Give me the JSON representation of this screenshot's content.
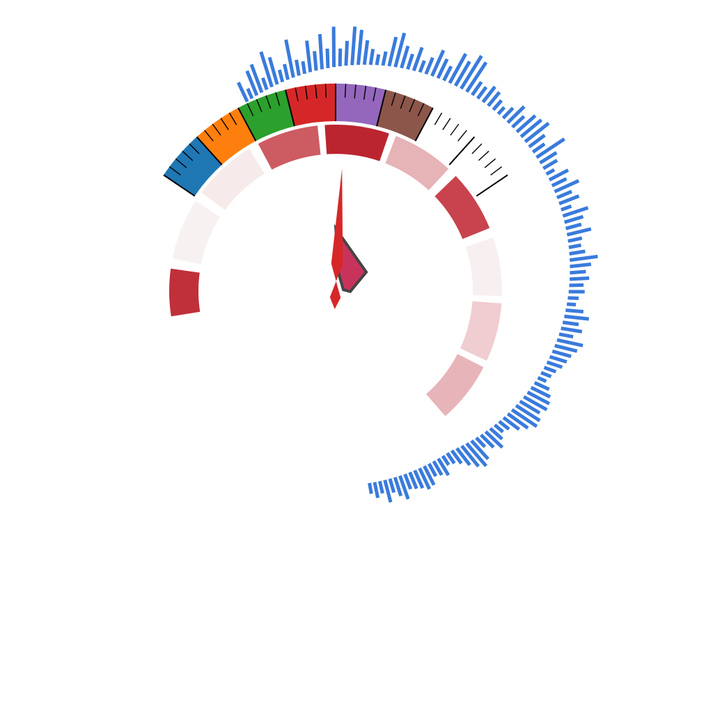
{
  "chart_data": {
    "type": "radial-gauge",
    "title": "",
    "colors": {
      "radial_bars": "#3a7bdc",
      "needle": "#d62728",
      "polygon_fill": "#c8335c",
      "polygon_stroke": "#444444",
      "tick": "#000000"
    },
    "color_band": {
      "start_deg": -56,
      "end_deg": 56,
      "segments": [
        {
          "color": "#1f77b4",
          "fraction": 0.125
        },
        {
          "color": "#ff7f0e",
          "fraction": 0.125
        },
        {
          "color": "#2ca02c",
          "fraction": 0.125
        },
        {
          "color": "#d62728",
          "fraction": 0.125
        },
        {
          "color": "#9467bd",
          "fraction": 0.125
        },
        {
          "color": "#8c564b",
          "fraction": 0.125
        },
        {
          "color": "#ffffff",
          "fraction": 0.125
        }
      ],
      "major_ticks": 9,
      "minor_per_major": 4
    },
    "inner_ring": {
      "segments": [
        {
          "start_deg": -99,
          "end_deg": -82,
          "color": "#c0303a"
        },
        {
          "start_deg": -79,
          "end_deg": -57,
          "color": "#f8f1f1"
        },
        {
          "start_deg": -54,
          "end_deg": -31,
          "color": "#f6eaea"
        },
        {
          "start_deg": -28,
          "end_deg": -6,
          "color": "#cd5b62"
        },
        {
          "start_deg": -4,
          "end_deg": 19,
          "color": "#bb2530"
        },
        {
          "start_deg": 21,
          "end_deg": 43,
          "color": "#e6b3b7"
        },
        {
          "start_deg": 46,
          "end_deg": 68,
          "color": "#c8434d"
        },
        {
          "start_deg": 71,
          "end_deg": 92,
          "color": "#f8f0f0"
        },
        {
          "start_deg": 94,
          "end_deg": 115,
          "color": "#efcdd0"
        },
        {
          "start_deg": 117,
          "end_deg": 139,
          "color": "#e7b5b9"
        }
      ]
    },
    "radial_bars": {
      "start_deg": -25,
      "end_deg": 170,
      "values": [
        0.45,
        0.15,
        0.6,
        0.7,
        0.2,
        0.9,
        0.65,
        0.2,
        0.3,
        0.95,
        0.3,
        0.2,
        0.75,
        0.4,
        0.85,
        0.4,
        1.0,
        0.35,
        0.55,
        0.95,
        0.85,
        0.55,
        0.3,
        0.15,
        0.25,
        0.7,
        0.85,
        0.5,
        0.3,
        0.55,
        0.2,
        0.35,
        0.65,
        0.45,
        0.3,
        0.8,
        0.65,
        0.95,
        0.85,
        0.3,
        0.25,
        0.4,
        0.35,
        0.2,
        0.1,
        0.25,
        0.5,
        0.3,
        0.55,
        0.6,
        0.7,
        0.4,
        0.25,
        0.8,
        0.4,
        0.3,
        0.1,
        0.45,
        0.3,
        0.6,
        0.3,
        0.45,
        0.15,
        0.6,
        0.4,
        0.3,
        0.55,
        0.25,
        0.2,
        0.3,
        0.65,
        0.45,
        0.3,
        0.4,
        0.25,
        0.3,
        0.15,
        0.1,
        0.35,
        0.55,
        0.3,
        0.45,
        0.25,
        0.6,
        0.5,
        0.4,
        0.35,
        0.3,
        0.2,
        0.15,
        0.1,
        0.3,
        0.45,
        0.55,
        0.6,
        0.5,
        0.65,
        0.7,
        0.55,
        0.4,
        0.2,
        0.15,
        0.3,
        0.5,
        0.35,
        0.2,
        0.55,
        0.7,
        0.6,
        0.45,
        0.3,
        0.2,
        0.15,
        0.4,
        0.3,
        0.25,
        0.45,
        0.5,
        0.4,
        0.35,
        0.3,
        0.55,
        0.4,
        0.25,
        0.5,
        0.2,
        0.3,
        0.15
      ]
    },
    "needle": {
      "angle_deg": 3
    },
    "polygon": {
      "points": [
        [
          0.17,
          64
        ],
        [
          58.3,
          37
        ],
        [
          91.9,
          15
        ],
        [
          80.2,
          8
        ],
        [
          10.3,
          18
        ]
      ]
    }
  }
}
